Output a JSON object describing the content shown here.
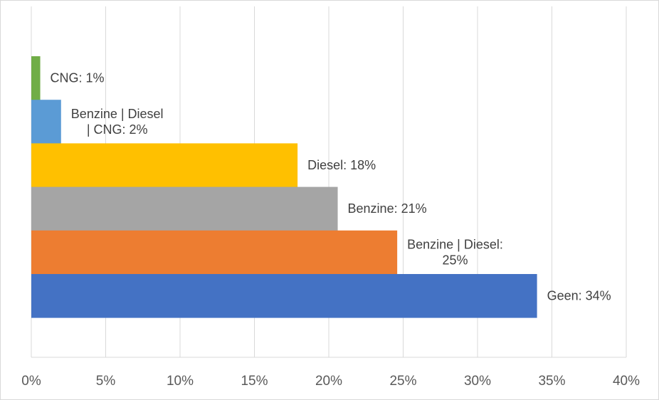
{
  "chart_data": {
    "type": "bar",
    "orientation": "horizontal",
    "title": "",
    "xlabel": "",
    "ylabel": "",
    "xlim": [
      0,
      40
    ],
    "x_ticks": [
      "0%",
      "5%",
      "10%",
      "15%",
      "20%",
      "25%",
      "30%",
      "35%",
      "40%"
    ],
    "grid": "vertical",
    "legend": "none",
    "bars": [
      {
        "category": "CNG",
        "value": 0.6,
        "label_lines": [
          "CNG: 1%"
        ],
        "color": "#70ad47"
      },
      {
        "category": "Benzine | Diesel | CNG",
        "value": 2.0,
        "label_lines": [
          "Benzine | Diesel",
          "| CNG: 2%"
        ],
        "color": "#5b9bd5"
      },
      {
        "category": "Diesel",
        "value": 17.9,
        "label_lines": [
          "Diesel: 18%"
        ],
        "color": "#ffc000"
      },
      {
        "category": "Benzine",
        "value": 20.6,
        "label_lines": [
          "Benzine: 21%"
        ],
        "color": "#a5a5a5"
      },
      {
        "category": "Benzine | Diesel",
        "value": 24.6,
        "label_lines": [
          "Benzine | Diesel:",
          "25%"
        ],
        "color": "#ed7d31"
      },
      {
        "category": "Geen",
        "value": 34.0,
        "label_lines": [
          "Geen: 34%"
        ],
        "color": "#4472c4"
      }
    ]
  }
}
